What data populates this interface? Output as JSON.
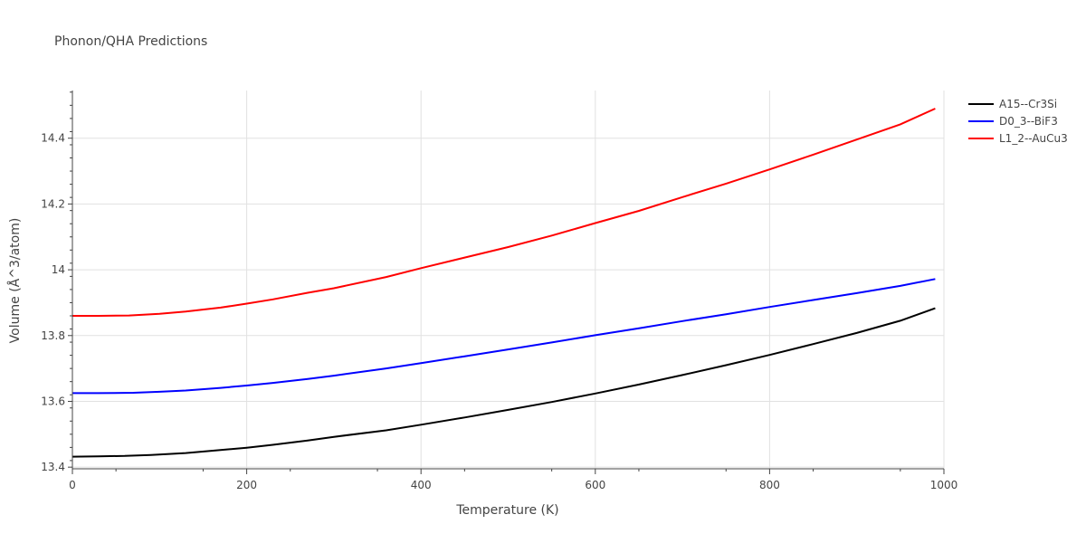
{
  "chart_data": {
    "type": "line",
    "title": "Phonon/QHA Predictions",
    "xlabel": "Temperature (K)",
    "ylabel": "Volume (Å^3/atom)",
    "xlim": [
      0,
      1000
    ],
    "ylim": [
      13.395,
      14.545
    ],
    "xticks": [
      0,
      200,
      400,
      600,
      800,
      1000
    ],
    "xtick_labels": [
      "0",
      "200",
      "400",
      "600",
      "800",
      "1000"
    ],
    "yticks": [
      13.4,
      13.6,
      13.8,
      14.0,
      14.2,
      14.4
    ],
    "ytick_labels": [
      "13.4",
      "13.6",
      "13.8",
      "14",
      "14.2",
      "14.4"
    ],
    "grid": true,
    "legend_position": "top-right",
    "series": [
      {
        "name": "A15--Cr3Si",
        "color": "#000000",
        "x": [
          0,
          30,
          60,
          90,
          130,
          170,
          200,
          230,
          270,
          300,
          360,
          400,
          450,
          500,
          550,
          600,
          650,
          700,
          750,
          800,
          850,
          900,
          950,
          990
        ],
        "y": [
          13.432,
          13.433,
          13.434,
          13.437,
          13.443,
          13.452,
          13.459,
          13.468,
          13.481,
          13.492,
          13.512,
          13.529,
          13.551,
          13.574,
          13.598,
          13.624,
          13.651,
          13.68,
          13.71,
          13.741,
          13.774,
          13.808,
          13.845,
          13.883
        ]
      },
      {
        "name": "D0_3--BiF3",
        "color": "#0000ff",
        "x": [
          0,
          30,
          70,
          100,
          130,
          170,
          200,
          230,
          270,
          300,
          360,
          400,
          450,
          500,
          550,
          600,
          650,
          700,
          750,
          800,
          850,
          900,
          950,
          990
        ],
        "y": [
          13.625,
          13.625,
          13.626,
          13.629,
          13.633,
          13.641,
          13.648,
          13.656,
          13.668,
          13.678,
          13.7,
          13.716,
          13.737,
          13.758,
          13.779,
          13.801,
          13.822,
          13.844,
          13.865,
          13.887,
          13.908,
          13.929,
          13.951,
          13.972
        ]
      },
      {
        "name": "L1_2--AuCu3",
        "color": "#ff0000",
        "x": [
          0,
          30,
          65,
          100,
          130,
          170,
          200,
          230,
          270,
          300,
          360,
          400,
          450,
          500,
          550,
          600,
          650,
          700,
          750,
          800,
          850,
          900,
          950,
          990
        ],
        "y": [
          13.86,
          13.86,
          13.861,
          13.866,
          13.873,
          13.885,
          13.897,
          13.91,
          13.93,
          13.944,
          13.978,
          14.005,
          14.037,
          14.069,
          14.104,
          14.142,
          14.179,
          14.221,
          14.262,
          14.305,
          14.35,
          14.396,
          14.442,
          14.49
        ]
      }
    ]
  }
}
